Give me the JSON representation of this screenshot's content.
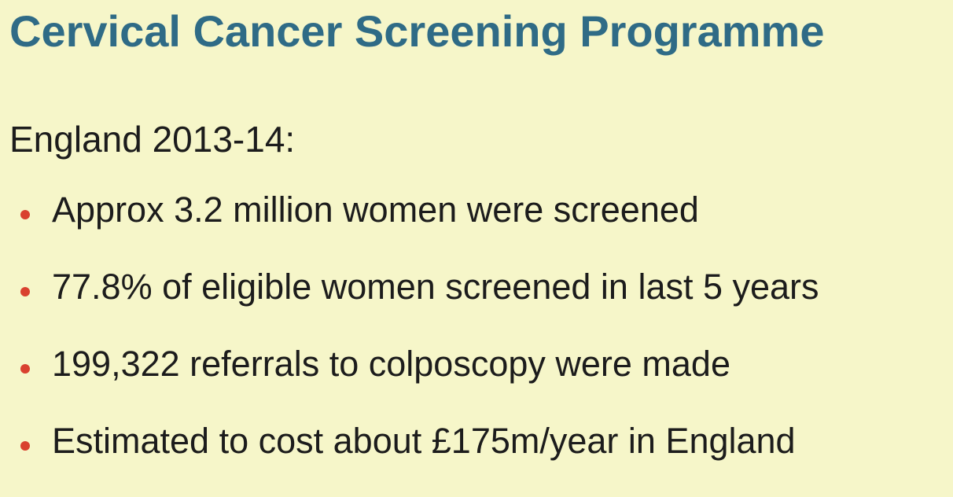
{
  "slide": {
    "title": "Cervical Cancer Screening Programme",
    "subtitle": "England 2013-14:",
    "bullets": [
      "Approx 3.2 million women were screened",
      "77.8% of eligible women screened in last 5 years",
      "199,322 referrals to colposcopy were made",
      "Estimated to cost about £175m/year in England"
    ],
    "colors": {
      "background": "#f6f6c9",
      "title": "#2f6b86",
      "text": "#1c1c1c",
      "bullet": "#d9412f"
    }
  }
}
